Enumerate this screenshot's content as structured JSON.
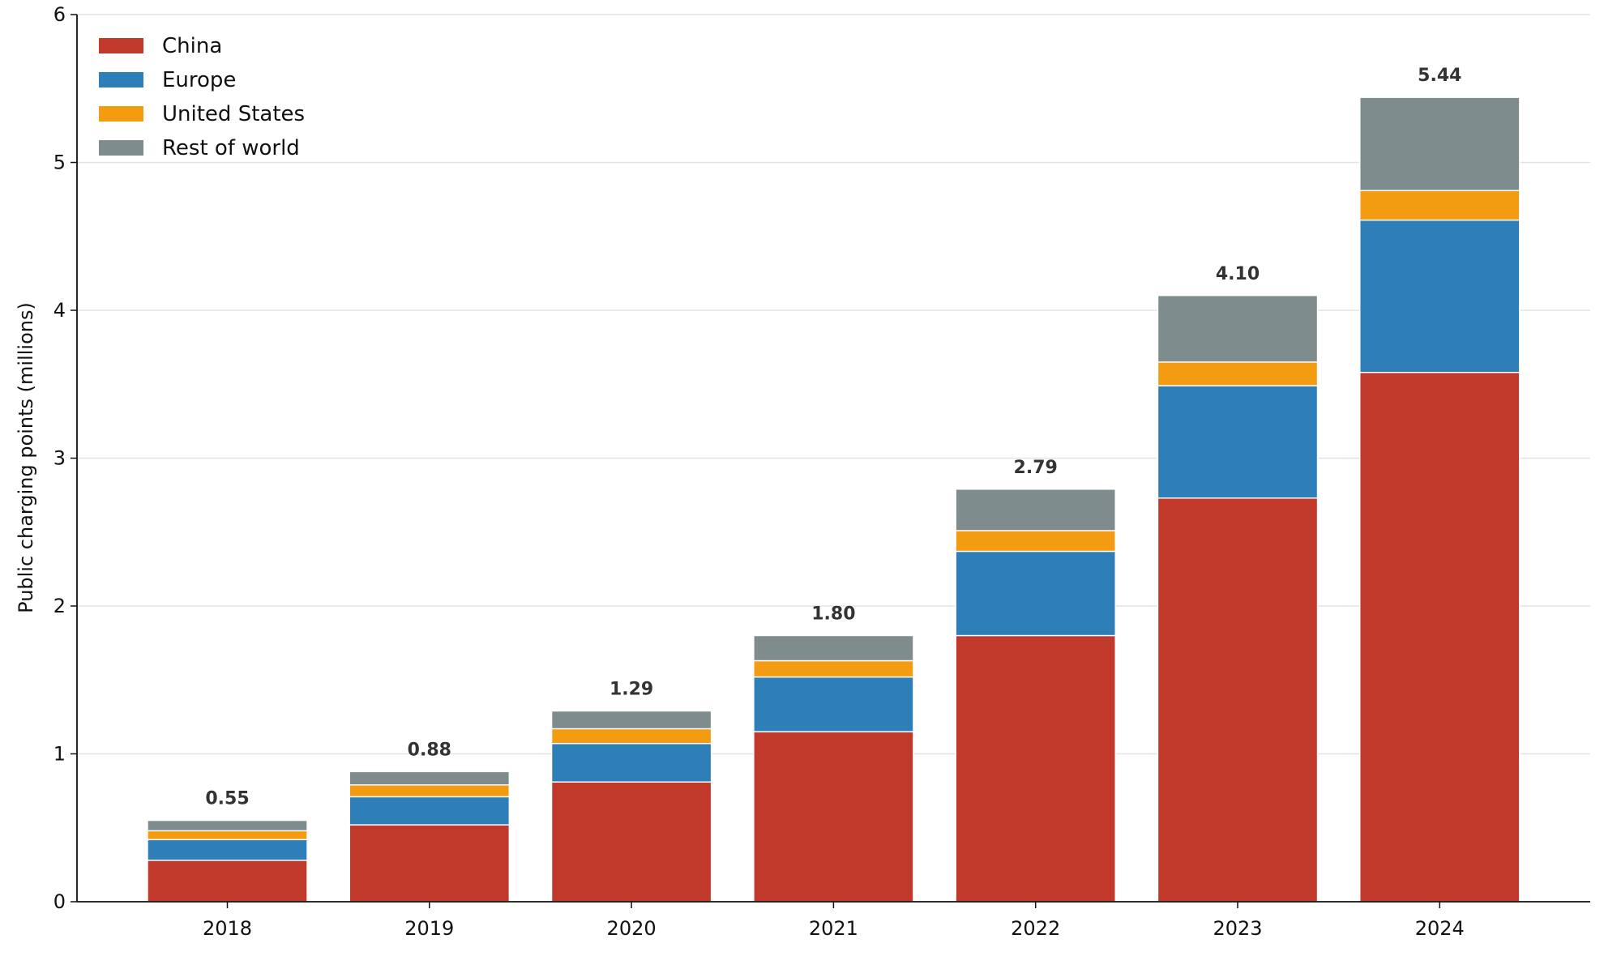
{
  "chart_data": {
    "type": "bar",
    "stacked": true,
    "categories": [
      "2018",
      "2019",
      "2020",
      "2021",
      "2022",
      "2023",
      "2024"
    ],
    "series": [
      {
        "name": "China",
        "color": "#c0392b",
        "values": [
          0.28,
          0.52,
          0.81,
          1.15,
          1.8,
          2.73,
          3.58
        ]
      },
      {
        "name": "Europe",
        "color": "#2e7fb8",
        "values": [
          0.14,
          0.19,
          0.26,
          0.37,
          0.57,
          0.76,
          1.03
        ]
      },
      {
        "name": "United States",
        "color": "#f39c12",
        "values": [
          0.06,
          0.08,
          0.1,
          0.11,
          0.14,
          0.16,
          0.2
        ]
      },
      {
        "name": "Rest of world",
        "color": "#7f8c8d",
        "values": [
          0.07,
          0.09,
          0.12,
          0.17,
          0.28,
          0.45,
          0.63
        ]
      }
    ],
    "totals": [
      "0.55",
      "0.88",
      "1.29",
      "1.80",
      "2.79",
      "4.10",
      "5.44"
    ],
    "title": "",
    "xlabel": "",
    "ylabel": "Public charging points (millions)",
    "ylim": [
      0,
      6
    ],
    "yticks": [
      "0",
      "1",
      "2",
      "3",
      "4",
      "5",
      "6"
    ],
    "grid": "horizontal",
    "legend_position": "top-left"
  }
}
